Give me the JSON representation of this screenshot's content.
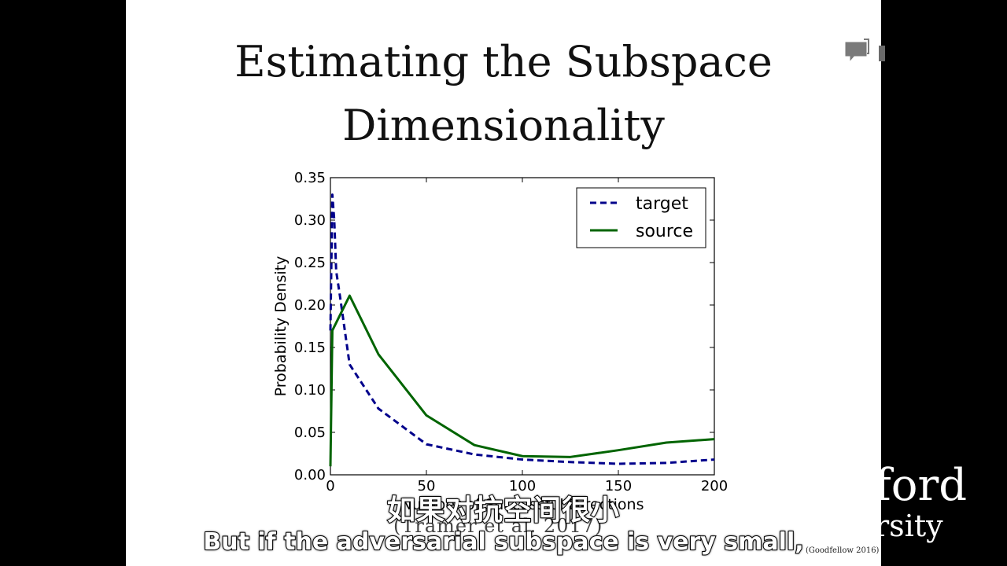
{
  "slide": {
    "title_lines": [
      "Estimating the Subspace",
      "Dimensionality"
    ],
    "citation": "(Tramèr et al. 2017)",
    "credit": "(Goodfellow 2016)"
  },
  "logo": {
    "line1": "ford",
    "line2": "rsity"
  },
  "icons": {
    "comment": "comment-icon"
  },
  "subtitles": {
    "zh": "如果对抗空间很小",
    "en": "But if the adversarial subspace is very small,"
  },
  "chart_data": {
    "type": "line",
    "xlabel": "Number of Successful Directions",
    "ylabel": "Probability Density",
    "xlim": [
      0,
      200
    ],
    "ylim": [
      0,
      0.35
    ],
    "x_ticks": [
      "0",
      "50",
      "100",
      "150",
      "200"
    ],
    "y_ticks": [
      "0.00",
      "0.05",
      "0.10",
      "0.15",
      "0.20",
      "0.25",
      "0.30",
      "0.35"
    ],
    "legend_position": "top-right",
    "series": [
      {
        "name": "target",
        "color": "#00008b",
        "style": "dashed",
        "x": [
          0,
          1,
          2,
          3,
          5,
          10,
          25,
          50,
          75,
          100,
          125,
          150,
          175,
          200
        ],
        "y": [
          0.17,
          0.33,
          0.3,
          0.24,
          0.21,
          0.13,
          0.078,
          0.036,
          0.024,
          0.018,
          0.015,
          0.013,
          0.014,
          0.018
        ]
      },
      {
        "name": "source",
        "color": "#006400",
        "style": "solid",
        "x": [
          0,
          1,
          10,
          25,
          50,
          75,
          100,
          125,
          150,
          175,
          200
        ],
        "y": [
          0.01,
          0.17,
          0.211,
          0.142,
          0.07,
          0.035,
          0.022,
          0.021,
          0.029,
          0.038,
          0.042
        ]
      }
    ]
  }
}
